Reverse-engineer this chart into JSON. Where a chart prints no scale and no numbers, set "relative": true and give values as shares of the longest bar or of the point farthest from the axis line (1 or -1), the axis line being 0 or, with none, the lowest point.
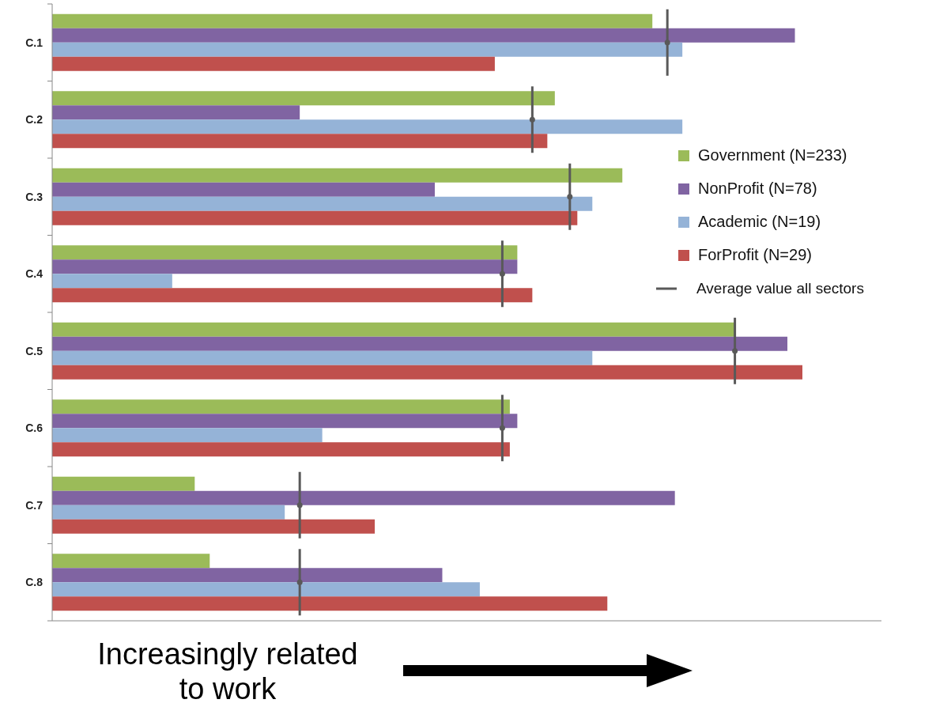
{
  "chart_data": {
    "type": "bar",
    "orientation": "horizontal",
    "relative": true,
    "xlabel": "Increasingly related to work",
    "categories": [
      "C.1",
      "C.2",
      "C.3",
      "C.4",
      "C.5",
      "C.6",
      "C.7",
      "C.8"
    ],
    "legend": "right",
    "series": [
      {
        "name": "Government (N=233)",
        "color": "#9bbb59",
        "values": [
          0.8,
          0.67,
          0.76,
          0.62,
          0.91,
          0.61,
          0.19,
          0.21
        ]
      },
      {
        "name": "NonProfit (N=78)",
        "color": "#8064a2",
        "values": [
          0.99,
          0.33,
          0.51,
          0.62,
          0.98,
          0.62,
          0.83,
          0.52
        ]
      },
      {
        "name": "Academic (N=19)",
        "color": "#95b3d7",
        "values": [
          0.84,
          0.84,
          0.72,
          0.16,
          0.72,
          0.36,
          0.31,
          0.57
        ]
      },
      {
        "name": "ForProfit (N=29)",
        "color": "#c0504d",
        "values": [
          0.59,
          0.66,
          0.7,
          0.64,
          1.0,
          0.61,
          0.43,
          0.74
        ]
      },
      {
        "name": "Average value all sectors",
        "type": "scatter",
        "color": "#595959",
        "values": [
          0.82,
          0.64,
          0.69,
          0.6,
          0.91,
          0.6,
          0.33,
          0.33
        ]
      }
    ]
  }
}
